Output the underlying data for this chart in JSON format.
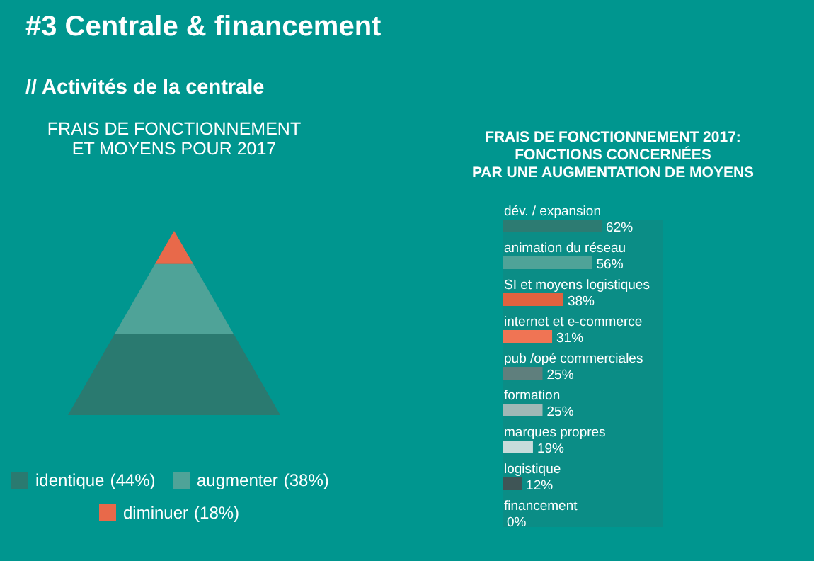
{
  "chart_data": [
    {
      "type": "other",
      "title": "#3 Centrale & financement",
      "subtitle": "// Activités de la centrale"
    },
    {
      "type": "other",
      "title": "FRAIS DE FONCTIONNEMENT\nET MOYENS POUR 2017",
      "categories": [
        "identique",
        "augmenter",
        "diminuer"
      ],
      "values": [
        44,
        38,
        18
      ],
      "value_labels": [
        "(44%)",
        "(38%)",
        "(18%)"
      ],
      "colors": [
        "#2a7a70",
        "#4fa398",
        "#e8694a"
      ]
    },
    {
      "type": "bar",
      "orientation": "horizontal",
      "title": "FRAIS DE FONCTIONNEMENT 2017:\nFONCTIONS CONCERNÉES\nPAR UNE AUGMENTATION DE MOYENS",
      "categories": [
        "dév. / expansion",
        "animation du réseau",
        "SI et moyens logistiques",
        "internet et e-commerce",
        "pub /opé commerciales",
        "formation",
        "marques propres",
        "logistique",
        "financement"
      ],
      "values": [
        62,
        56,
        38,
        31,
        25,
        25,
        19,
        12,
        0
      ],
      "value_labels": [
        "62%",
        "56%",
        "38%",
        "31%",
        "25%",
        "25%",
        "19%",
        "12%",
        "0%"
      ],
      "colors": [
        "#2d7b72",
        "#4fa398",
        "#e0623f",
        "#f07454",
        "#5f7f7d",
        "#9fb8b6",
        "#c7dcdb",
        "#3f5556",
        "#3f5556"
      ],
      "bands": [
        {
          "axis": "x",
          "from": 0,
          "to": 100,
          "color": "#0b8d86"
        }
      ]
    }
  ]
}
